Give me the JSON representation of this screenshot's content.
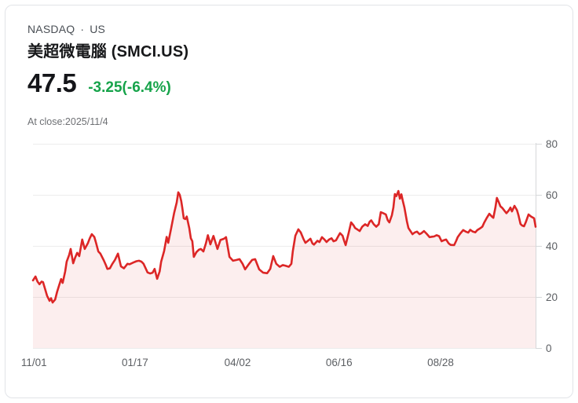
{
  "header": {
    "market": "NASDAQ",
    "dot": "·",
    "region": "US",
    "title": "美超微電腦 (SMCI.US)",
    "price": "47.5",
    "change": "-3.25(-6.4%)",
    "change_color": "#16a34a",
    "close_note": "At close:2025/11/4"
  },
  "chart_data": {
    "type": "area",
    "title": "",
    "xlabel": "",
    "ylabel": "",
    "ylim": [
      0,
      80
    ],
    "yticks": [
      0,
      20,
      40,
      60,
      80
    ],
    "grid": "horizontal",
    "legend": "none",
    "xticks": [
      {
        "label": "11/01",
        "t": 0.002
      },
      {
        "label": "01/17",
        "t": 0.203
      },
      {
        "label": "04/02",
        "t": 0.407
      },
      {
        "label": "06/16",
        "t": 0.609
      },
      {
        "label": "08/28",
        "t": 0.811
      }
    ],
    "colors": {
      "line": "#dc2626",
      "area_fill": "rgba(220,38,38,0.08)",
      "grid": "#ececec",
      "axis": "#d6d8da",
      "tick_text": "#5c5f63"
    },
    "series": [
      {
        "name": "SMCI.US close price",
        "points": [
          [
            0.0,
            26.5
          ],
          [
            0.005,
            28.0
          ],
          [
            0.009,
            26.0
          ],
          [
            0.013,
            25.0
          ],
          [
            0.017,
            26.0
          ],
          [
            0.02,
            25.8
          ],
          [
            0.025,
            22.5
          ],
          [
            0.028,
            20.5
          ],
          [
            0.033,
            18.5
          ],
          [
            0.036,
            19.5
          ],
          [
            0.039,
            17.8
          ],
          [
            0.044,
            19.0
          ],
          [
            0.048,
            22.0
          ],
          [
            0.052,
            24.6
          ],
          [
            0.056,
            27.0
          ],
          [
            0.059,
            25.5
          ],
          [
            0.064,
            30.0
          ],
          [
            0.067,
            33.8
          ],
          [
            0.072,
            36.5
          ],
          [
            0.075,
            38.8
          ],
          [
            0.08,
            33.2
          ],
          [
            0.084,
            35.5
          ],
          [
            0.088,
            37.3
          ],
          [
            0.092,
            36.0
          ],
          [
            0.098,
            42.5
          ],
          [
            0.103,
            38.8
          ],
          [
            0.109,
            41.0
          ],
          [
            0.113,
            43.0
          ],
          [
            0.117,
            44.6
          ],
          [
            0.122,
            43.5
          ],
          [
            0.125,
            41.5
          ],
          [
            0.13,
            37.8
          ],
          [
            0.134,
            37.0
          ],
          [
            0.141,
            34.3
          ],
          [
            0.145,
            32.5
          ],
          [
            0.148,
            31.0
          ],
          [
            0.153,
            31.2
          ],
          [
            0.158,
            33.0
          ],
          [
            0.163,
            34.5
          ],
          [
            0.169,
            37.0
          ],
          [
            0.175,
            32.0
          ],
          [
            0.181,
            31.2
          ],
          [
            0.188,
            33.0
          ],
          [
            0.192,
            32.8
          ],
          [
            0.2,
            33.5
          ],
          [
            0.206,
            34.0
          ],
          [
            0.211,
            34.2
          ],
          [
            0.216,
            33.8
          ],
          [
            0.22,
            33.0
          ],
          [
            0.228,
            29.6
          ],
          [
            0.233,
            29.2
          ],
          [
            0.238,
            29.5
          ],
          [
            0.242,
            31.0
          ],
          [
            0.247,
            27.1
          ],
          [
            0.252,
            30.0
          ],
          [
            0.255,
            33.8
          ],
          [
            0.261,
            38.0
          ],
          [
            0.266,
            43.5
          ],
          [
            0.269,
            41.2
          ],
          [
            0.275,
            47.0
          ],
          [
            0.281,
            53.0
          ],
          [
            0.286,
            57.0
          ],
          [
            0.289,
            61.0
          ],
          [
            0.292,
            60.0
          ],
          [
            0.295,
            57.5
          ],
          [
            0.297,
            55.0
          ],
          [
            0.3,
            50.8
          ],
          [
            0.303,
            50.5
          ],
          [
            0.306,
            51.5
          ],
          [
            0.311,
            47.0
          ],
          [
            0.314,
            43.0
          ],
          [
            0.317,
            41.8
          ],
          [
            0.32,
            35.7
          ],
          [
            0.325,
            37.5
          ],
          [
            0.33,
            38.5
          ],
          [
            0.334,
            38.8
          ],
          [
            0.339,
            37.8
          ],
          [
            0.344,
            41.0
          ],
          [
            0.348,
            44.2
          ],
          [
            0.353,
            40.6
          ],
          [
            0.359,
            43.9
          ],
          [
            0.367,
            38.8
          ],
          [
            0.373,
            42.3
          ],
          [
            0.38,
            42.8
          ],
          [
            0.384,
            43.4
          ],
          [
            0.391,
            35.7
          ],
          [
            0.398,
            34.2
          ],
          [
            0.405,
            34.5
          ],
          [
            0.411,
            34.8
          ],
          [
            0.417,
            33.0
          ],
          [
            0.422,
            30.8
          ],
          [
            0.43,
            33.0
          ],
          [
            0.436,
            34.5
          ],
          [
            0.442,
            34.8
          ],
          [
            0.45,
            30.8
          ],
          [
            0.458,
            29.5
          ],
          [
            0.466,
            29.3
          ],
          [
            0.472,
            31.0
          ],
          [
            0.478,
            36.0
          ],
          [
            0.484,
            33.0
          ],
          [
            0.491,
            31.8
          ],
          [
            0.497,
            32.5
          ],
          [
            0.503,
            32.2
          ],
          [
            0.509,
            31.8
          ],
          [
            0.514,
            33.0
          ],
          [
            0.517,
            38.0
          ],
          [
            0.522,
            44.0
          ],
          [
            0.528,
            46.5
          ],
          [
            0.533,
            45.2
          ],
          [
            0.538,
            42.8
          ],
          [
            0.542,
            41.2
          ],
          [
            0.547,
            42.0
          ],
          [
            0.552,
            42.8
          ],
          [
            0.556,
            41.0
          ],
          [
            0.559,
            40.5
          ],
          [
            0.566,
            42.0
          ],
          [
            0.57,
            41.5
          ],
          [
            0.575,
            43.4
          ],
          [
            0.58,
            42.5
          ],
          [
            0.584,
            41.5
          ],
          [
            0.589,
            42.5
          ],
          [
            0.594,
            43.0
          ],
          [
            0.598,
            41.8
          ],
          [
            0.603,
            42.2
          ],
          [
            0.608,
            44.0
          ],
          [
            0.611,
            45.0
          ],
          [
            0.616,
            44.0
          ],
          [
            0.619,
            42.0
          ],
          [
            0.622,
            40.3
          ],
          [
            0.628,
            45.0
          ],
          [
            0.633,
            49.2
          ],
          [
            0.638,
            48.0
          ],
          [
            0.641,
            47.0
          ],
          [
            0.645,
            46.5
          ],
          [
            0.65,
            45.8
          ],
          [
            0.655,
            47.5
          ],
          [
            0.661,
            48.5
          ],
          [
            0.666,
            47.8
          ],
          [
            0.67,
            49.5
          ],
          [
            0.673,
            50.0
          ],
          [
            0.678,
            48.5
          ],
          [
            0.683,
            47.5
          ],
          [
            0.688,
            48.5
          ],
          [
            0.692,
            53.2
          ],
          [
            0.697,
            52.8
          ],
          [
            0.702,
            52.3
          ],
          [
            0.706,
            50.0
          ],
          [
            0.709,
            49.2
          ],
          [
            0.714,
            52.0
          ],
          [
            0.717,
            55.0
          ],
          [
            0.72,
            60.3
          ],
          [
            0.723,
            59.5
          ],
          [
            0.727,
            61.5
          ],
          [
            0.73,
            58.5
          ],
          [
            0.733,
            60.2
          ],
          [
            0.736,
            57.5
          ],
          [
            0.739,
            55.0
          ],
          [
            0.744,
            49.5
          ],
          [
            0.747,
            47.0
          ],
          [
            0.752,
            45.5
          ],
          [
            0.755,
            44.6
          ],
          [
            0.759,
            45.2
          ],
          [
            0.764,
            45.6
          ],
          [
            0.769,
            44.6
          ],
          [
            0.773,
            45.0
          ],
          [
            0.778,
            45.8
          ],
          [
            0.783,
            44.8
          ],
          [
            0.789,
            43.4
          ],
          [
            0.794,
            43.6
          ],
          [
            0.798,
            43.7
          ],
          [
            0.803,
            44.2
          ],
          [
            0.808,
            43.8
          ],
          [
            0.813,
            41.8
          ],
          [
            0.817,
            42.2
          ],
          [
            0.822,
            42.5
          ],
          [
            0.827,
            41.0
          ],
          [
            0.831,
            40.4
          ],
          [
            0.838,
            40.3
          ],
          [
            0.842,
            42.0
          ],
          [
            0.845,
            43.4
          ],
          [
            0.85,
            44.8
          ],
          [
            0.856,
            46.2
          ],
          [
            0.861,
            45.6
          ],
          [
            0.866,
            45.2
          ],
          [
            0.87,
            46.3
          ],
          [
            0.875,
            45.6
          ],
          [
            0.88,
            45.3
          ],
          [
            0.884,
            46.2
          ],
          [
            0.889,
            46.8
          ],
          [
            0.894,
            47.5
          ],
          [
            0.898,
            49.2
          ],
          [
            0.903,
            51.0
          ],
          [
            0.908,
            52.6
          ],
          [
            0.913,
            51.5
          ],
          [
            0.916,
            51.0
          ],
          [
            0.92,
            55.0
          ],
          [
            0.923,
            58.8
          ],
          [
            0.927,
            57.0
          ],
          [
            0.93,
            55.5
          ],
          [
            0.934,
            54.8
          ],
          [
            0.939,
            53.5
          ],
          [
            0.942,
            52.8
          ],
          [
            0.947,
            54.0
          ],
          [
            0.95,
            55.0
          ],
          [
            0.953,
            53.5
          ],
          [
            0.958,
            55.7
          ],
          [
            0.963,
            54.0
          ],
          [
            0.966,
            52.0
          ],
          [
            0.97,
            48.6
          ],
          [
            0.973,
            48.0
          ],
          [
            0.977,
            47.7
          ],
          [
            0.981,
            49.5
          ],
          [
            0.986,
            52.3
          ],
          [
            0.991,
            51.5
          ],
          [
            0.997,
            50.8
          ],
          [
            1.0,
            47.5
          ]
        ]
      }
    ]
  }
}
